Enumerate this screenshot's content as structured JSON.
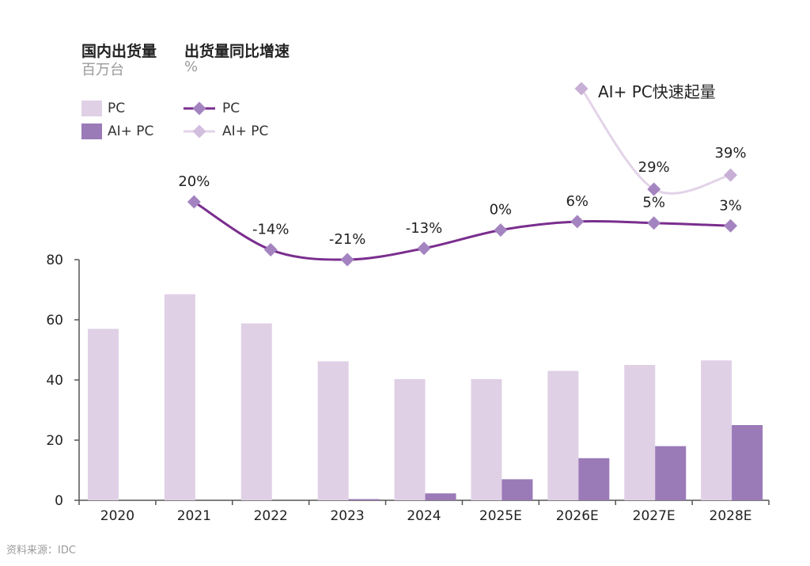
{
  "header": {
    "left_title": "国内出货量",
    "left_unit": "百万台",
    "right_title": "出货量同比增速",
    "right_unit": "%"
  },
  "legend": {
    "bar_pc": "PC",
    "bar_ai_pc": "AI+ PC",
    "line_pc": "PC",
    "line_ai_pc": "AI+ PC"
  },
  "annotation": "AI+ PC快速起量",
  "source": "资料来源：IDC",
  "colors": {
    "pc_bar": "#e0d0e6",
    "ai_bar": "#9b7ab8",
    "pc_line": "#7a2e8e",
    "ai_line": "#e3d3e8",
    "marker": "#a484c0",
    "axis": "#555555"
  },
  "chart_data": {
    "type": "bar",
    "categories": [
      "2020",
      "2021",
      "2022",
      "2023",
      "2024",
      "2025E",
      "2026E",
      "2027E",
      "2028E"
    ],
    "ylim": [
      0,
      80
    ],
    "yticks": [
      0,
      20,
      40,
      60,
      80
    ],
    "series": [
      {
        "name": "PC",
        "type": "bar",
        "values": [
          57,
          68.5,
          58.8,
          46.2,
          40.3,
          40.3,
          43,
          45,
          46.5
        ]
      },
      {
        "name": "AI+ PC",
        "type": "bar",
        "values": [
          0,
          0,
          0,
          0.4,
          2.3,
          7,
          14,
          18,
          25
        ]
      },
      {
        "name": "PC",
        "type": "line",
        "axis": "secondary",
        "values": [
          null,
          20,
          -14,
          -21,
          -13,
          0,
          6,
          5,
          3
        ],
        "labels": [
          null,
          "20%",
          "-14%",
          "-21%",
          "-13%",
          "0%",
          "6%",
          "5%",
          "3%"
        ]
      },
      {
        "name": "AI+ PC",
        "type": "line",
        "axis": "secondary",
        "values": [
          null,
          null,
          null,
          null,
          null,
          null,
          null,
          29,
          39
        ],
        "labels": [
          null,
          null,
          null,
          null,
          null,
          null,
          null,
          "29%",
          "39%"
        ]
      }
    ]
  }
}
